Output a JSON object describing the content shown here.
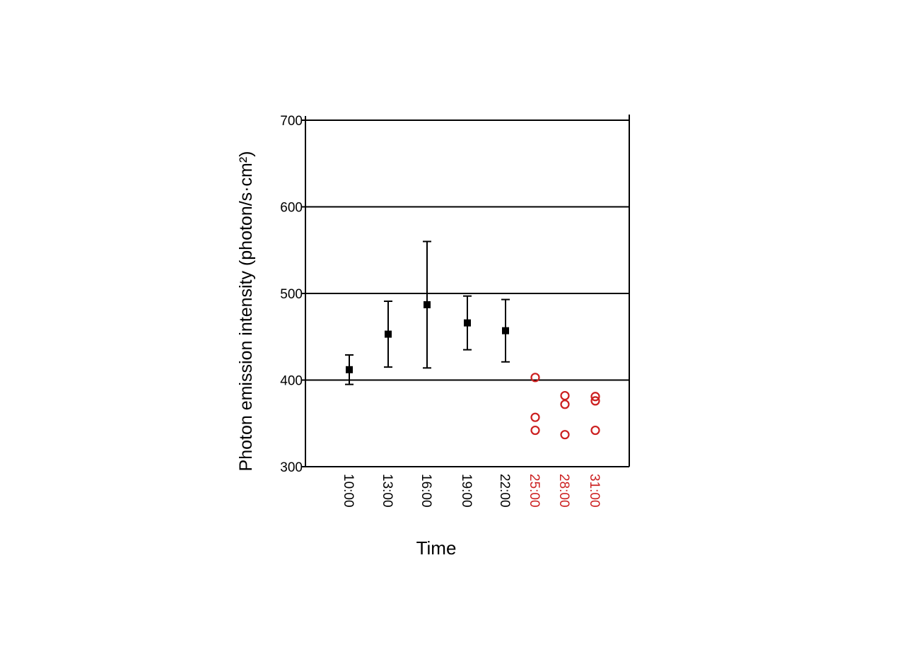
{
  "chart_data": {
    "type": "errorbar",
    "x_label": "Time",
    "y_label": "Photon emission intensity  (photon/s·cm²)",
    "categories": [
      "10:00",
      "13:00",
      "16:00",
      "19:00",
      "22:00",
      "25:00",
      "28:00",
      "31:00"
    ],
    "category_colors": [
      "#000000",
      "#000000",
      "#000000",
      "#000000",
      "#000000",
      "#cc1f1f",
      "#cc1f1f",
      "#cc1f1f"
    ],
    "ylim": [
      300,
      700
    ],
    "yticks": [
      300,
      400,
      500,
      600,
      700
    ],
    "grid": true,
    "series": [
      {
        "color": "#000000",
        "marker": "square",
        "values": [
          412,
          453,
          487,
          466,
          457,
          null,
          null,
          null
        ],
        "errors": [
          17,
          38,
          73,
          31,
          36,
          null,
          null,
          null
        ]
      },
      {
        "color": "#cc1f1f",
        "marker": "open-circle",
        "values": [
          null,
          null,
          null,
          null,
          null,
          403,
          382,
          381
        ]
      },
      {
        "color": "#cc1f1f",
        "marker": "open-circle",
        "values": [
          null,
          null,
          null,
          null,
          null,
          357,
          372,
          376
        ]
      },
      {
        "color": "#cc1f1f",
        "marker": "open-circle",
        "values": [
          null,
          null,
          null,
          null,
          null,
          342,
          337,
          342
        ]
      }
    ]
  }
}
